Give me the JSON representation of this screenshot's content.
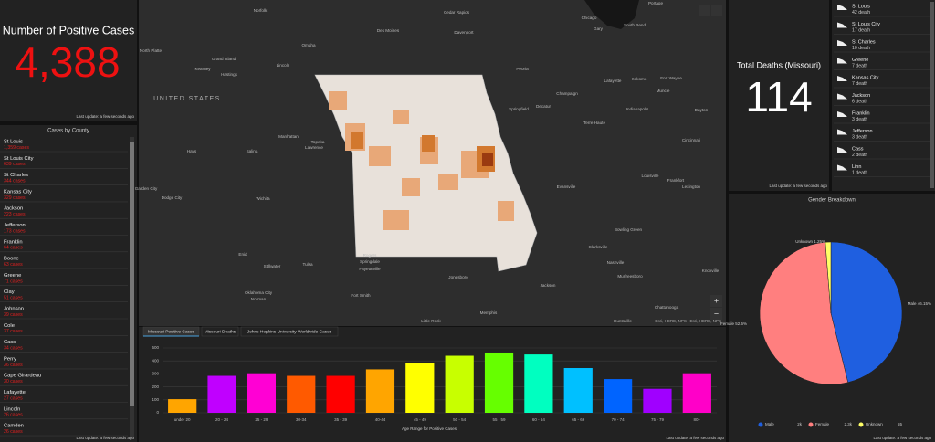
{
  "positive_cases": {
    "title": "Number of Positive Cases",
    "value": "4,388",
    "updated": "Last update: a few seconds ago"
  },
  "county_cases": {
    "title": "Cases by County",
    "items": [
      {
        "name": "St Louis",
        "cases": "1,359 cases"
      },
      {
        "name": "St Louis City",
        "cases": "639 cases"
      },
      {
        "name": "St Charles",
        "cases": "344 cases"
      },
      {
        "name": "Kansas City",
        "cases": "329 cases"
      },
      {
        "name": "Jackson",
        "cases": "223 cases"
      },
      {
        "name": "Jefferson",
        "cases": "173 cases"
      },
      {
        "name": "Franklin",
        "cases": "64 cases"
      },
      {
        "name": "Boone",
        "cases": "63 cases"
      },
      {
        "name": "Greene",
        "cases": "71 cases"
      },
      {
        "name": "Clay",
        "cases": "51 cases"
      },
      {
        "name": "Johnson",
        "cases": "39 cases"
      },
      {
        "name": "Cole",
        "cases": "37 cases"
      },
      {
        "name": "Cass",
        "cases": "34 cases"
      },
      {
        "name": "Perry",
        "cases": "36 cases"
      },
      {
        "name": "Cape Girardeau",
        "cases": "30 cases"
      },
      {
        "name": "Lafayette",
        "cases": "27 cases"
      },
      {
        "name": "Lincoln",
        "cases": "26 cases"
      },
      {
        "name": "Camden",
        "cases": "26 cases"
      }
    ],
    "updated": "Last update: a few seconds ago"
  },
  "map": {
    "labels": [
      "Norfolk",
      "Cedar Rapids",
      "Chicago",
      "Portage",
      "Gary",
      "South Bend",
      "Des Moines",
      "Davenport",
      "Omaha",
      "Grand Island",
      "Lincoln",
      "Kearney",
      "Hastings",
      "Peoria",
      "Fort Wayne",
      "UNITED STATES",
      "Champaign",
      "Lafayette",
      "Kokomo",
      "Muncie",
      "Indianapolis",
      "Springfield",
      "Decatur",
      "Dayton",
      "Terre Haute",
      "Topeka",
      "Lawrence",
      "Manhattan",
      "Salina",
      "Cincinnati",
      "Evansville",
      "Louisville",
      "Frankfort",
      "Lexington",
      "Hays",
      "Dodge City",
      "Wichita",
      "Bowling Green",
      "Clarksville",
      "Nashville",
      "Murfreesboro",
      "Knoxville",
      "Enid",
      "Stillwater",
      "Tulsa",
      "Rogers",
      "Springdale",
      "Fayetteville",
      "Jonesboro",
      "Jackson",
      "Oklahoma City",
      "Norman",
      "Fort Smith",
      "Little Rock",
      "Memphis",
      "Huntsville",
      "Chattanooga",
      "North Platte",
      "Garden City"
    ],
    "zoom_in": "+",
    "zoom_out": "−",
    "attribution": "Esri, HERE, NPS | Esri, HERE, NPS"
  },
  "tabs": [
    "Missouri Positive Cases",
    "Missouri Deaths",
    "Johns Hopkins University Worldwide Cases"
  ],
  "age_chart": {
    "type": "bar",
    "categories": [
      "under 20",
      "20 - 24",
      "25 - 29",
      "30-34",
      "35 - 39",
      "40-44",
      "45 - 49",
      "50 - 54",
      "55 - 59",
      "60 - 64",
      "65 - 69",
      "70 - 74",
      "75 - 79",
      "80+"
    ],
    "values": [
      105,
      285,
      305,
      285,
      285,
      335,
      385,
      440,
      465,
      450,
      345,
      260,
      185,
      305
    ],
    "colors": [
      "#ffa500",
      "#c000ff",
      "#ff00d4",
      "#ff5a00",
      "#ff0000",
      "#ffa500",
      "#ffff00",
      "#c8ff00",
      "#66ff00",
      "#00ffc0",
      "#00c0ff",
      "#0064ff",
      "#a000ff",
      "#ff00c8"
    ],
    "ylim": [
      0,
      500
    ],
    "yticks": [
      0,
      100,
      200,
      300,
      400,
      500
    ],
    "grid": true,
    "xlabel": "Age Range for Positive Cases",
    "updated": "Last update: a few seconds ago"
  },
  "total_deaths": {
    "title": "Total Deaths (Missouri)",
    "value": "114",
    "updated": "Last update: a few seconds ago"
  },
  "deaths_list": {
    "items": [
      {
        "name": "St Louis",
        "deaths": "42 death"
      },
      {
        "name": "St Louis City",
        "deaths": "17 death"
      },
      {
        "name": "St Charles",
        "deaths": "10 death"
      },
      {
        "name": "Greene",
        "deaths": "7 death"
      },
      {
        "name": "Kansas City",
        "deaths": "7 death"
      },
      {
        "name": "Jackson",
        "deaths": "6 death"
      },
      {
        "name": "Franklin",
        "deaths": "3 death"
      },
      {
        "name": "Jefferson",
        "deaths": "3 death"
      },
      {
        "name": "Cass",
        "deaths": "2 death"
      },
      {
        "name": "Linn",
        "deaths": "1 death"
      }
    ]
  },
  "gender_chart": {
    "type": "pie",
    "title": "Gender Breakdown",
    "categories": [
      "Male",
      "Female",
      "Unknown"
    ],
    "values": [
      46.15,
      52.6,
      1.25
    ],
    "value_labels": [
      "46.15%",
      "52.6%",
      "1.25%"
    ],
    "colors": [
      "#1f5fe0",
      "#ff7f7f",
      "#ffff66"
    ],
    "legend_counts": [
      {
        "value": 2000,
        "label": "2k"
      },
      {
        "value": 2300,
        "label": "2.3k"
      },
      55
    ],
    "updated": "Last update: a few seconds ago"
  }
}
